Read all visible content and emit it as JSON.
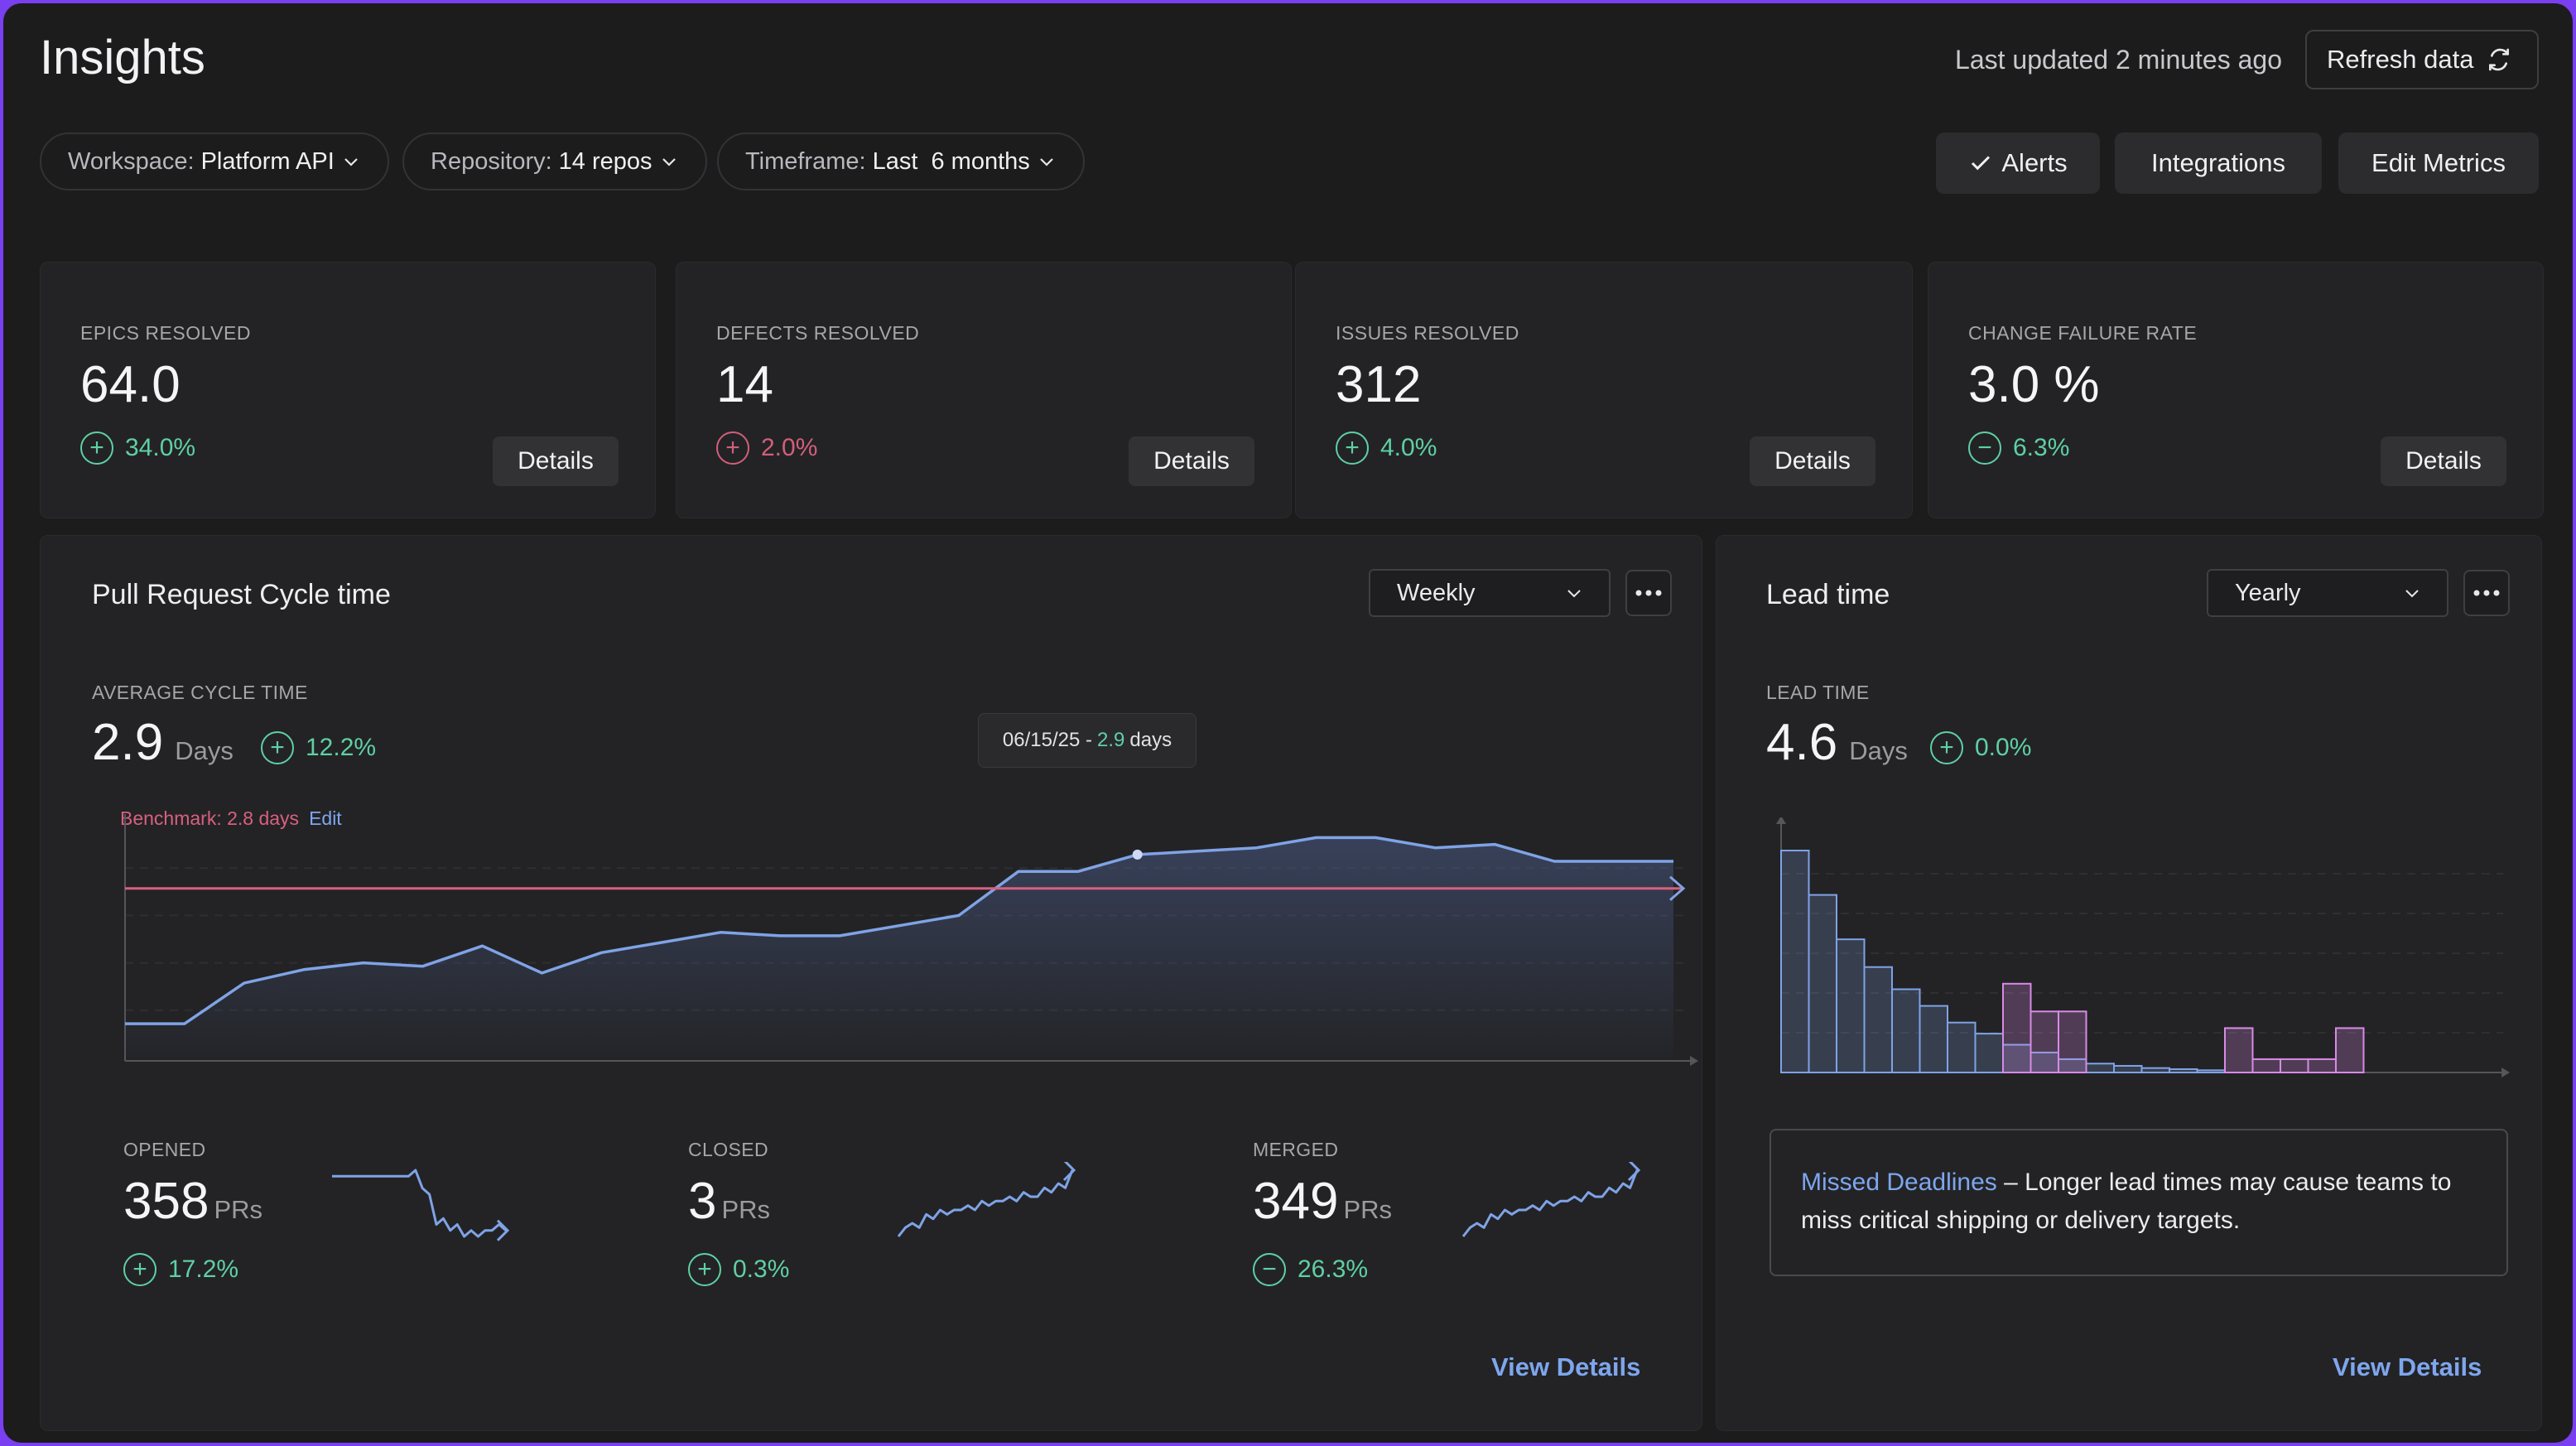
{
  "header": {
    "title": "Insights",
    "last_updated": "Last updated 2 minutes ago",
    "refresh_label": "Refresh data"
  },
  "filters": [
    {
      "label": "Workspace:",
      "value": "Platform API"
    },
    {
      "label": "Repository:",
      "value": "14 repos"
    },
    {
      "label": "Timeframe:",
      "value": "Last  6 months"
    }
  ],
  "actions": {
    "alerts": "Alerts",
    "integrations": "Integrations",
    "edit_metrics": "Edit Metrics"
  },
  "kpis": [
    {
      "label": "EPICS RESOLVED",
      "value": "64.0",
      "sign": "+",
      "change": "34.0%",
      "status": "positive",
      "details": "Details"
    },
    {
      "label": "DEFECTS RESOLVED",
      "value": "14",
      "sign": "+",
      "change": "2.0%",
      "status": "negative",
      "details": "Details"
    },
    {
      "label": "ISSUES RESOLVED",
      "value": "312",
      "sign": "+",
      "change": "4.0%",
      "status": "positive",
      "details": "Details"
    },
    {
      "label": "CHANGE FAILURE RATE",
      "value": "3.0 %",
      "sign": "−",
      "change": "6.3%",
      "status": "positive",
      "details": "Details"
    }
  ],
  "cycle": {
    "title": "Pull Request Cycle time",
    "period": "Weekly",
    "metric_label": "AVERAGE CYCLE TIME",
    "value": "2.9",
    "unit": "Days",
    "sign": "+",
    "change": "12.2%",
    "benchmark": "Benchmark: 2.8 days",
    "benchmark_edit": "Edit",
    "tooltip_date": "06/15/25 -",
    "tooltip_value": "2.9",
    "tooltip_unit": "days",
    "view_details": "View Details",
    "stats": [
      {
        "label": "OPENED",
        "value": "358",
        "unit": "PRs",
        "sign": "+",
        "change": "17.2%"
      },
      {
        "label": "CLOSED",
        "value": "3",
        "unit": "PRs",
        "sign": "+",
        "change": "0.3%"
      },
      {
        "label": "MERGED",
        "value": "349",
        "unit": "PRs",
        "sign": "−",
        "change": "26.3%"
      }
    ]
  },
  "lead": {
    "title": "Lead time",
    "period": "Yearly",
    "metric_label": "LEAD TIME",
    "value": "4.6",
    "unit": "Days",
    "sign": "+",
    "change": "0.0%",
    "note_link": "Missed Deadlines",
    "note_text": " – Longer lead times may cause teams to miss critical shipping or delivery targets.",
    "view_details": "View Details"
  },
  "colors": {
    "line": "#7fa3e6",
    "benchmark": "#d8607e",
    "positive": "#5fd0a4",
    "negative": "#d15f7c",
    "bar_blue": "#7fa3e6",
    "bar_pink": "#d98ae6"
  },
  "chart_data": [
    {
      "type": "area",
      "series": [
        {
          "values": [
            2.4,
            2.4,
            2.52,
            2.56,
            2.58,
            2.57,
            2.63,
            2.55,
            2.61,
            2.64,
            2.67,
            2.66,
            2.66,
            2.69,
            2.72,
            2.85,
            2.85,
            2.9,
            2.91,
            2.92,
            2.95,
            2.95,
            2.92,
            2.93,
            2.88,
            2.88,
            2.88
          ]
        }
      ],
      "benchmark": 2.8,
      "ylim": [
        2.3,
        3.0
      ],
      "grid": true
    },
    {
      "type": "line",
      "series": [
        {
          "name": "OPENED",
          "values": [
            12,
            12,
            12,
            12,
            12,
            12,
            12,
            12,
            12,
            12,
            12,
            12,
            13,
            10,
            9,
            4,
            5,
            3,
            4,
            2,
            3,
            2,
            3,
            3,
            4,
            3
          ]
        }
      ]
    },
    {
      "type": "line",
      "series": [
        {
          "name": "CLOSED",
          "values": [
            1,
            3,
            4,
            3,
            6,
            5,
            7,
            6,
            7,
            7,
            8,
            7,
            9,
            8,
            9,
            9,
            10,
            9,
            11,
            10,
            10,
            12,
            11,
            13,
            12,
            16
          ]
        }
      ]
    },
    {
      "type": "line",
      "series": [
        {
          "name": "MERGED",
          "values": [
            1,
            3,
            4,
            3,
            6,
            5,
            7,
            6,
            7,
            7,
            8,
            7,
            9,
            8,
            9,
            9,
            10,
            9,
            11,
            10,
            10,
            12,
            11,
            13,
            12,
            16
          ]
        }
      ]
    },
    {
      "type": "bar",
      "series": [
        {
          "values": [
            20,
            16,
            12,
            9.5,
            7.5,
            6,
            4.5,
            3.5,
            2.5,
            1.8,
            1.2,
            0.8,
            0.6,
            0.4,
            0.3,
            0.2,
            0,
            0,
            0,
            0,
            0
          ]
        },
        {
          "values": [
            0,
            0,
            0,
            0,
            0,
            0,
            0,
            0,
            8,
            5.5,
            5.5,
            0,
            0,
            0,
            0,
            0,
            4,
            1.2,
            1.2,
            1.2,
            4
          ]
        }
      ],
      "grid": true
    }
  ]
}
